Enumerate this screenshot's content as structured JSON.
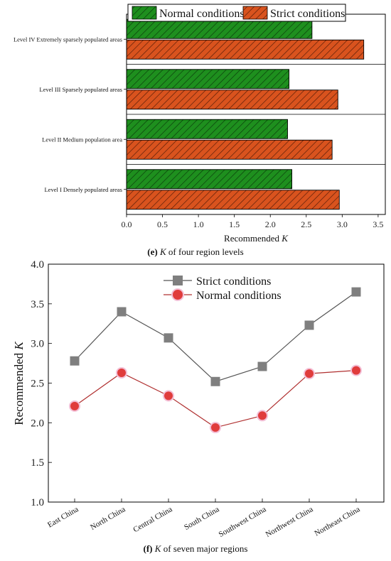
{
  "chart_data": [
    {
      "type": "bar",
      "orientation": "horizontal",
      "caption": {
        "letter": "(e)",
        "variable": "K",
        "text": " of four region levels"
      },
      "categories": [
        "Level I Densely populated areas",
        "Level II Medium population area",
        "Level III Sparsely populated areas",
        "Level IV Extremely sparsely populated areas"
      ],
      "series": [
        {
          "name": "Normal conditions",
          "values": [
            2.3,
            2.24,
            2.26,
            2.58
          ],
          "color": "#1e8f1e",
          "pattern": "hatched"
        },
        {
          "name": "Strict conditions",
          "values": [
            2.96,
            2.86,
            2.94,
            3.3
          ],
          "color": "#d9531e",
          "pattern": "hatched"
        }
      ],
      "xlabel": {
        "prefix": "Recommended ",
        "variable": "K"
      },
      "xlim": [
        0,
        3.6
      ],
      "xticks": [
        "0.0",
        "0.5",
        "1.0",
        "1.5",
        "2.0",
        "2.5",
        "3.0",
        "3.5"
      ],
      "legend": "top"
    },
    {
      "type": "line",
      "caption": {
        "letter": "(f)",
        "variable": "K",
        "text": " of seven major regions"
      },
      "categories": [
        "East China",
        "North China",
        "Central China",
        "South China",
        "Southwest China",
        "Northwest China",
        "Northeast China"
      ],
      "series": [
        {
          "name": "Strict conditions",
          "values": [
            2.78,
            3.4,
            3.07,
            2.52,
            2.71,
            3.23,
            3.65
          ],
          "color": "#7f7f7f",
          "marker": "square"
        },
        {
          "name": "Normal conditions",
          "values": [
            2.21,
            2.63,
            2.34,
            1.94,
            2.09,
            2.62,
            2.66
          ],
          "color": "#e03c3c",
          "marker": "circle"
        }
      ],
      "ylabel": {
        "prefix": "Recommended ",
        "variable": "K"
      },
      "ylim": [
        1.0,
        4.0
      ],
      "yticks": [
        "1.0",
        "1.5",
        "2.0",
        "2.5",
        "3.0",
        "3.5",
        "4.0"
      ],
      "legend": "top-right"
    }
  ]
}
